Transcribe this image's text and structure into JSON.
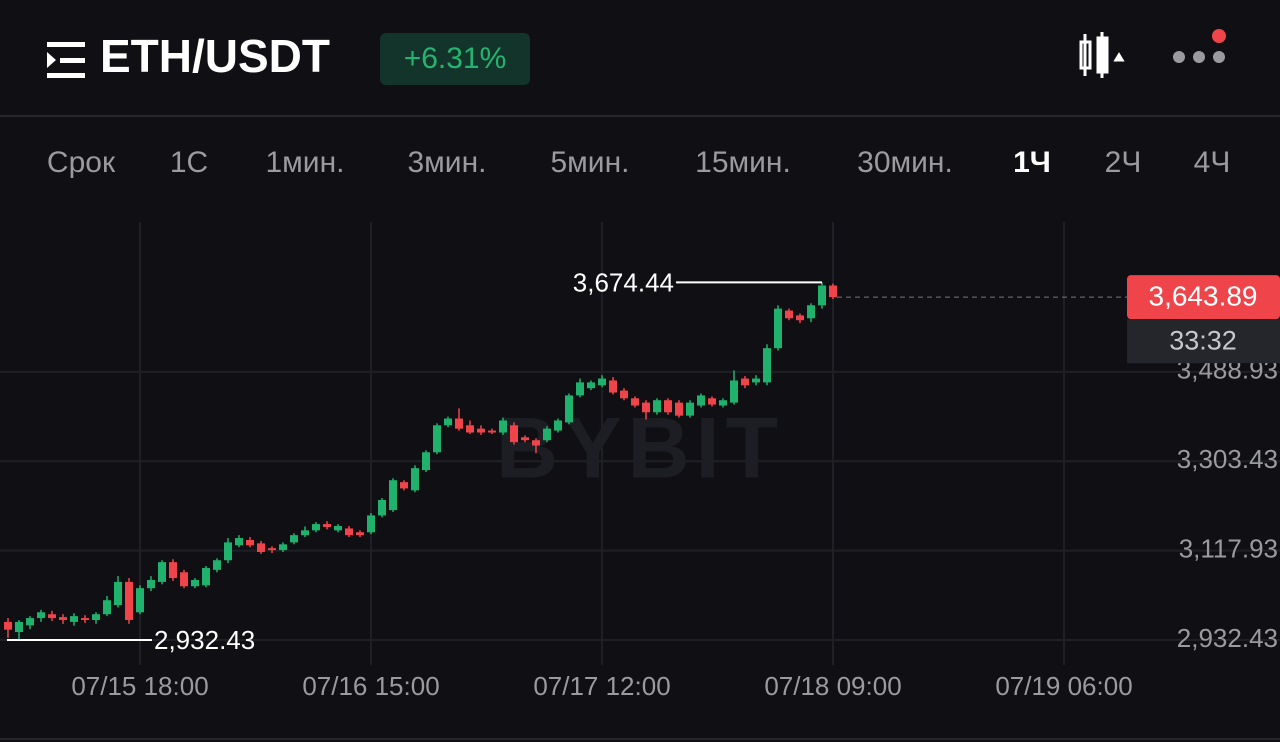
{
  "header": {
    "title": "ETH/USDT",
    "change": "+6.31%"
  },
  "tabs": {
    "items": [
      "Срок",
      "1С",
      "1мин.",
      "3мин.",
      "5мин.",
      "15мин.",
      "30мин.",
      "1Ч",
      "2Ч",
      "4Ч"
    ],
    "active": 7
  },
  "chart_data": {
    "type": "candlestick",
    "watermark": "BYBIT",
    "up_color": "#20b26c",
    "down_color": "#ef454a",
    "grid": true,
    "open": [
      2970,
      2949,
      2963,
      2978,
      2986,
      2980,
      2970,
      2978,
      2974,
      2986,
      3005,
      3053,
      2990,
      3040,
      3053,
      3094,
      3073,
      3044,
      3046,
      3078,
      3098,
      3129,
      3140,
      3133,
      3123,
      3119,
      3135,
      3150,
      3160,
      3173,
      3160,
      3164,
      3156,
      3156,
      3191,
      3202,
      3260,
      3243,
      3285,
      3322,
      3378,
      3392,
      3378,
      3371,
      3367,
      3363,
      3378,
      3353,
      3347,
      3347,
      3367,
      3384,
      3440,
      3455,
      3461,
      3471,
      3450,
      3434,
      3425,
      3405,
      3430,
      3425,
      3398,
      3419,
      3434,
      3419,
      3425,
      3475,
      3467,
      3467,
      3538,
      3616,
      3606,
      3600,
      3627,
      3668
    ],
    "high": [
      2978,
      2974,
      2982,
      2995,
      2993,
      2986,
      2988,
      2984,
      2990,
      3024,
      3065,
      3061,
      3046,
      3065,
      3098,
      3100,
      3078,
      3061,
      3086,
      3102,
      3144,
      3150,
      3146,
      3138,
      3127,
      3135,
      3154,
      3168,
      3177,
      3179,
      3173,
      3169,
      3160,
      3196,
      3227,
      3268,
      3264,
      3295,
      3326,
      3382,
      3396,
      3413,
      3388,
      3378,
      3371,
      3394,
      3384,
      3357,
      3351,
      3376,
      3392,
      3444,
      3475,
      3471,
      3482,
      3478,
      3455,
      3438,
      3430,
      3434,
      3434,
      3430,
      3430,
      3444,
      3438,
      3434,
      3492,
      3480,
      3482,
      3546,
      3627,
      3620,
      3610,
      3631,
      3674.44,
      3672
    ],
    "low": [
      2937,
      2932.43,
      2955,
      2970,
      2972,
      2966,
      2962,
      2968,
      2966,
      2982,
      3000,
      2966,
      2986,
      3034,
      3048,
      3055,
      3040,
      3040,
      3042,
      3073,
      3092,
      3125,
      3125,
      3111,
      3113,
      3115,
      3131,
      3146,
      3156,
      3162,
      3156,
      3146,
      3146,
      3152,
      3187,
      3198,
      3243,
      3239,
      3281,
      3318,
      3374,
      3367,
      3360,
      3358,
      3360,
      3358,
      3338,
      3343,
      3320,
      3343,
      3363,
      3380,
      3436,
      3451,
      3457,
      3442,
      3430,
      3415,
      3390,
      3400,
      3400,
      3394,
      3394,
      3415,
      3417,
      3415,
      3421,
      3455,
      3461,
      3461,
      3533,
      3596,
      3590,
      3592,
      3620,
      3640
    ],
    "close": [
      2954,
      2970,
      2978,
      2990,
      2978,
      2974,
      2982,
      2974,
      2986,
      3015,
      3053,
      2974,
      3040,
      3057,
      3094,
      3061,
      3044,
      3057,
      3082,
      3098,
      3135,
      3144,
      3129,
      3115,
      3119,
      3131,
      3150,
      3160,
      3173,
      3167,
      3169,
      3150,
      3150,
      3191,
      3223,
      3264,
      3247,
      3289,
      3322,
      3378,
      3392,
      3371,
      3363,
      3363,
      3363,
      3388,
      3343,
      3347,
      3336,
      3371,
      3388,
      3440,
      3467,
      3467,
      3475,
      3446,
      3434,
      3419,
      3405,
      3430,
      3405,
      3398,
      3425,
      3440,
      3421,
      3430,
      3471,
      3461,
      3475,
      3538,
      3620,
      3600,
      3596,
      3627,
      3668,
      3643.89
    ],
    "xlim": [
      -0.727,
      115.636
    ],
    "xticks": [
      {
        "value": 12,
        "label": "07/15 18:00"
      },
      {
        "value": 33,
        "label": "07/16 15:00"
      },
      {
        "value": 54,
        "label": "07/17 12:00"
      },
      {
        "value": 75,
        "label": "07/18 09:00"
      },
      {
        "value": 96,
        "label": "07/19 06:00"
      }
    ],
    "ylim": [
      2880.6,
      3799.8
    ],
    "yticks": [
      {
        "value": 2932.43,
        "label": "2,932.43"
      },
      {
        "value": 3117.93,
        "label": "3,117.93"
      },
      {
        "value": 3303.43,
        "label": "3,303.43"
      },
      {
        "value": 3488.93,
        "label": "3,488.93"
      }
    ],
    "high_label": {
      "value": 3674.44,
      "label": "3,674.44"
    },
    "low_label": {
      "value": 2932.43,
      "label": "2,932.43"
    },
    "last_price": {
      "value": 3643.89,
      "label": "3,643.89"
    },
    "countdown": "33:32"
  }
}
